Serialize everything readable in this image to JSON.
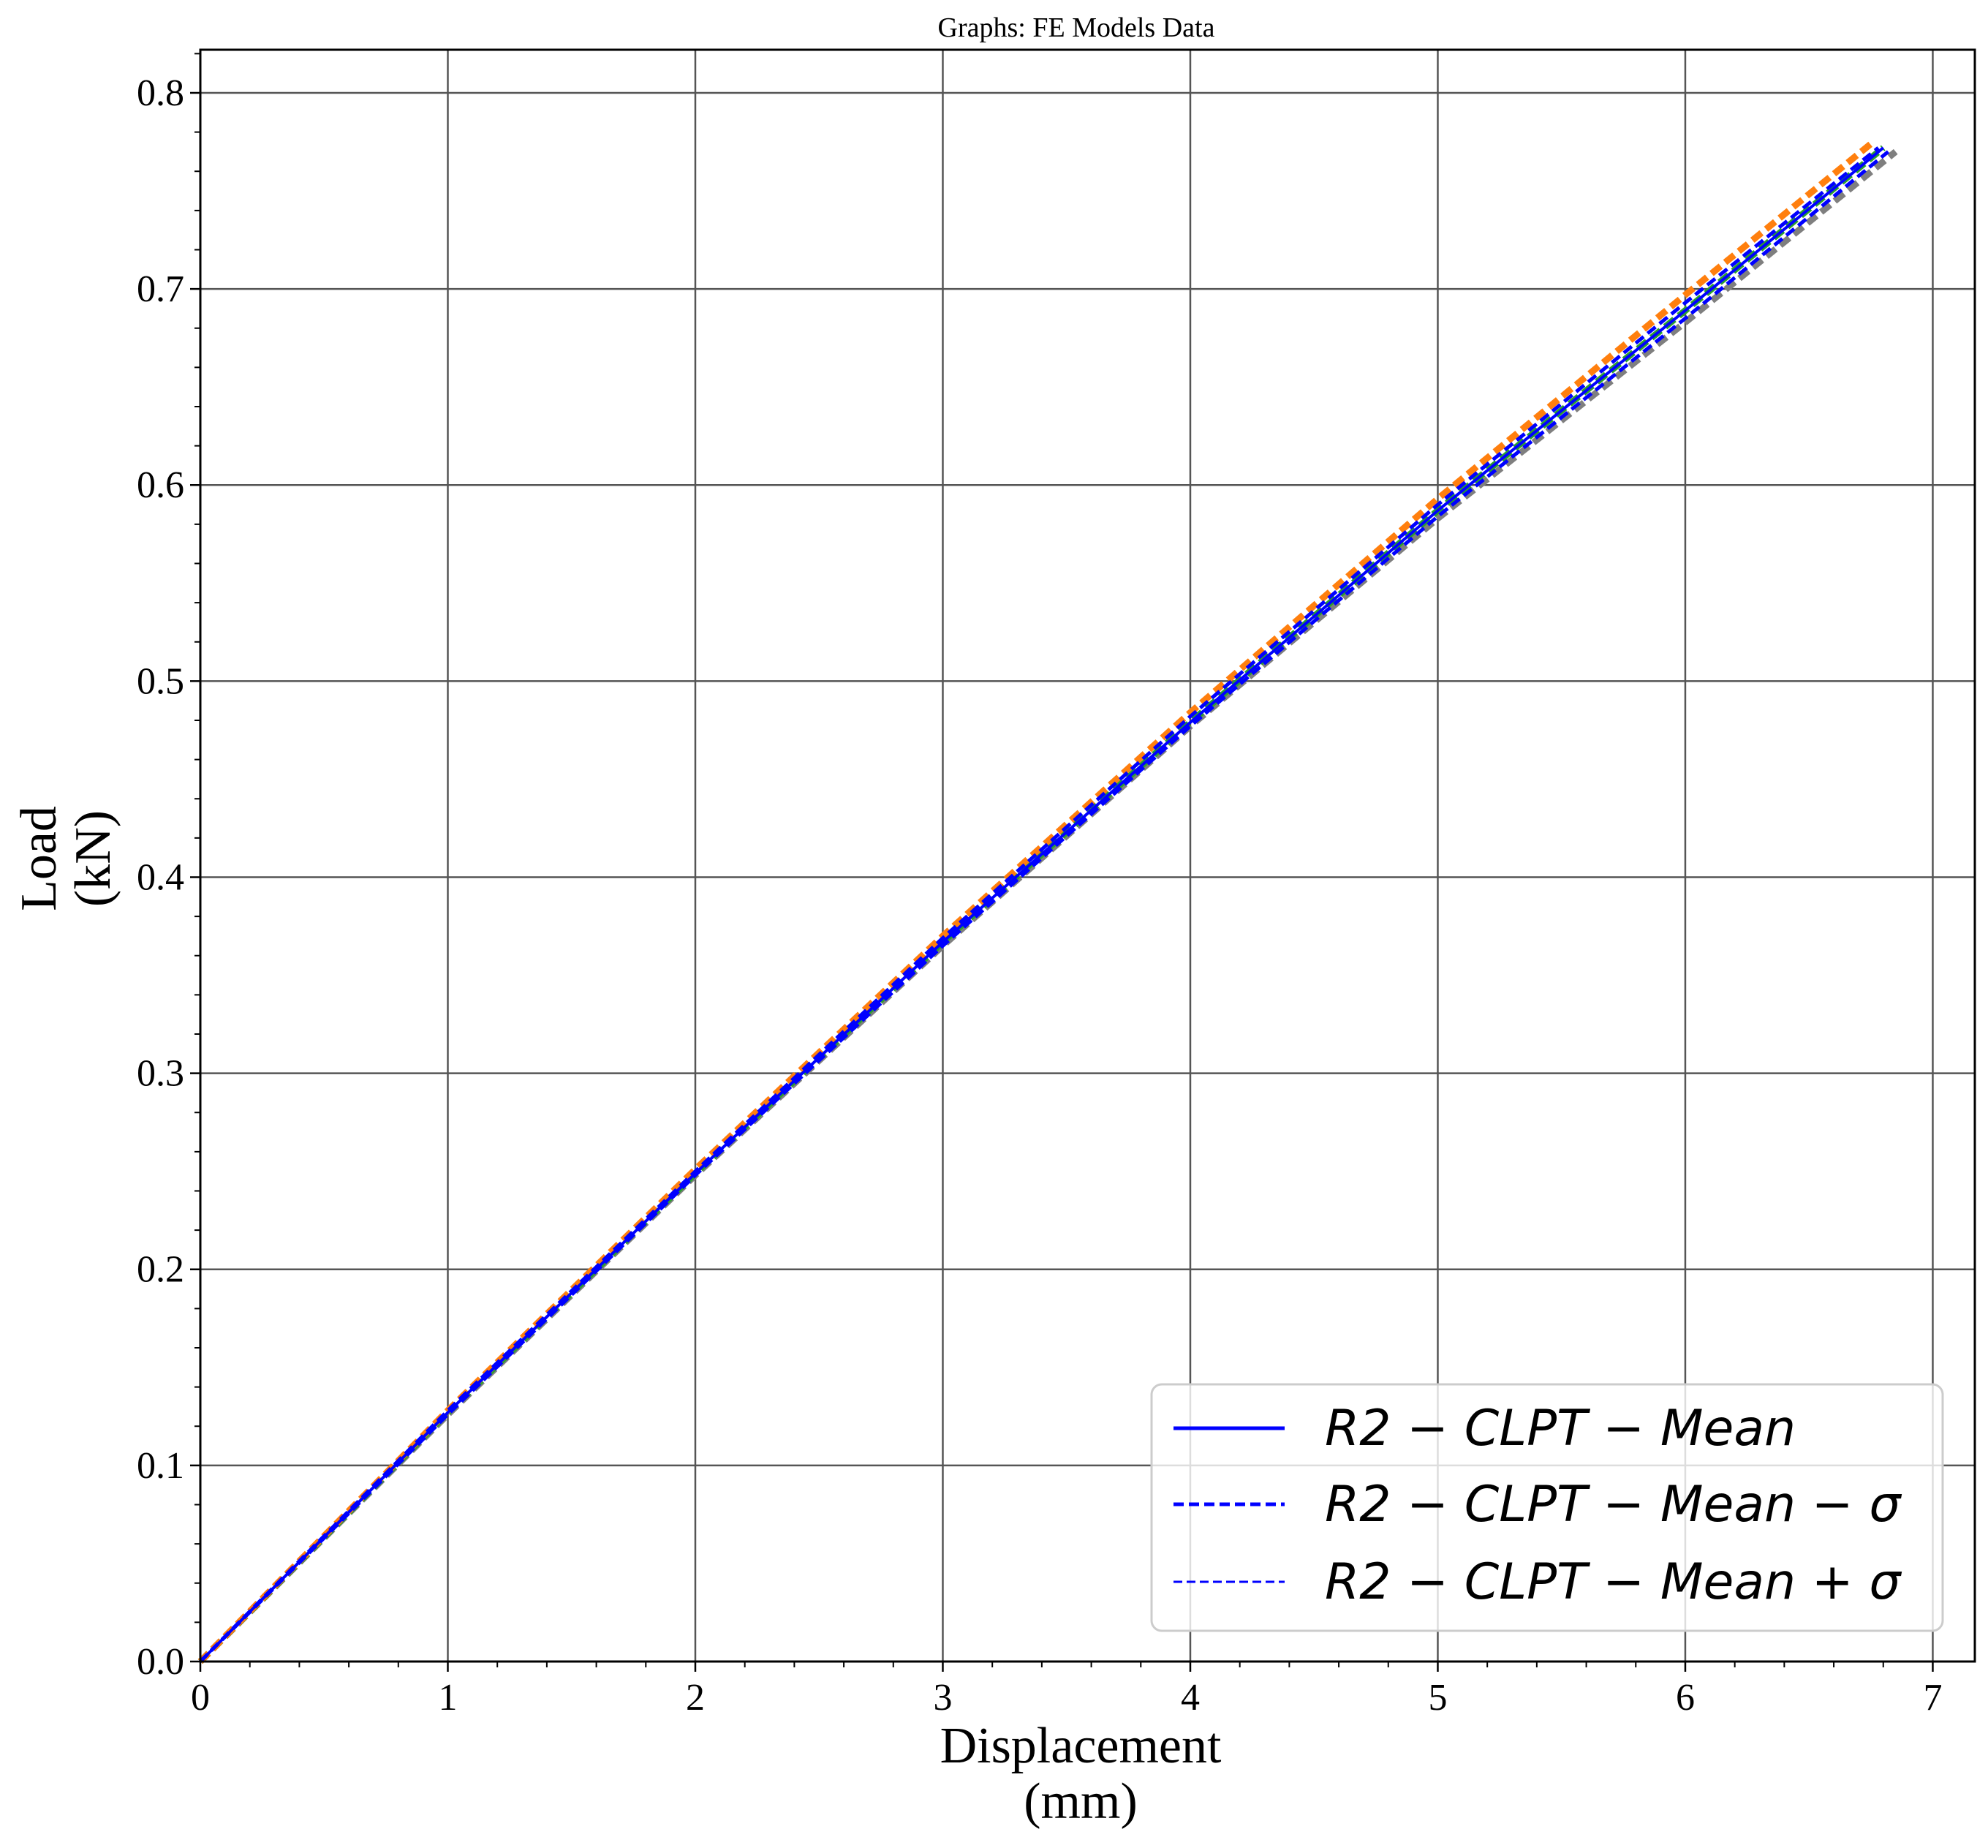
{
  "chart_data": {
    "type": "line",
    "title": "Graphs: FE Models Data",
    "xlabel": [
      "Displacement",
      "(mm)"
    ],
    "ylabel": [
      "Load",
      "(kN)"
    ],
    "xlim": [
      0,
      7.17
    ],
    "ylim": [
      0,
      0.822
    ],
    "xticks": [
      0,
      1,
      2,
      3,
      4,
      5,
      6,
      7
    ],
    "yticks": [
      0.0,
      0.1,
      0.2,
      0.3,
      0.4,
      0.5,
      0.6,
      0.7,
      0.8
    ],
    "xtick_labels": [
      "0",
      "1",
      "2",
      "3",
      "4",
      "5",
      "6",
      "7"
    ],
    "ytick_labels": [
      "0.0",
      "0.1",
      "0.2",
      "0.3",
      "0.4",
      "0.5",
      "0.6",
      "0.7",
      "0.8"
    ],
    "grid": true,
    "legend_position": "lower-right",
    "series": [
      {
        "name": "",
        "color": "#7f7f7f",
        "style": "dashed-thick",
        "x": [
          0,
          1,
          2,
          3,
          4,
          5,
          6,
          6.85
        ],
        "y": [
          0,
          0.126,
          0.248,
          0.365,
          0.477,
          0.583,
          0.683,
          0.77
        ]
      },
      {
        "name": "",
        "color": "#2ca02c",
        "style": "dashed-thick",
        "x": [
          0,
          1,
          2,
          3,
          4,
          5,
          6,
          6.8
        ],
        "y": [
          0,
          0.127,
          0.249,
          0.367,
          0.479,
          0.587,
          0.689,
          0.772
        ]
      },
      {
        "name": "",
        "color": "#ff7f0e",
        "style": "dashed-thick",
        "x": [
          0,
          1,
          2,
          3,
          4,
          5,
          6,
          6.75
        ],
        "y": [
          0,
          0.128,
          0.251,
          0.37,
          0.484,
          0.593,
          0.697,
          0.774
        ]
      },
      {
        "name": "R2-CLPT-Mean+σ",
        "color": "#0000ff",
        "style": "dashed",
        "x": [
          0,
          1,
          2,
          3,
          4,
          5,
          6,
          6.78
        ],
        "y": [
          0,
          0.128,
          0.25,
          0.369,
          0.482,
          0.59,
          0.693,
          0.772
        ]
      },
      {
        "name": "R2-CLPT-Mean-σ",
        "color": "#0000ff",
        "style": "dashed",
        "x": [
          0,
          1,
          2,
          3,
          4,
          5,
          6,
          6.82
        ],
        "y": [
          0,
          0.126,
          0.248,
          0.365,
          0.477,
          0.584,
          0.685,
          0.77
        ]
      },
      {
        "name": "R2-CLPT-Mean",
        "color": "#0000ff",
        "style": "solid",
        "x": [
          0,
          1,
          2,
          3,
          4,
          5,
          6,
          6.8
        ],
        "y": [
          0,
          0.127,
          0.249,
          0.367,
          0.479,
          0.587,
          0.689,
          0.772
        ]
      }
    ],
    "legend": [
      {
        "label": "R2 − CLPT − Mean",
        "style": "solid"
      },
      {
        "label": "R2 − CLPT − Mean − σ",
        "style": "dashed"
      },
      {
        "label": "R2 − CLPT − Mean + σ",
        "style": "dashed"
      }
    ]
  }
}
